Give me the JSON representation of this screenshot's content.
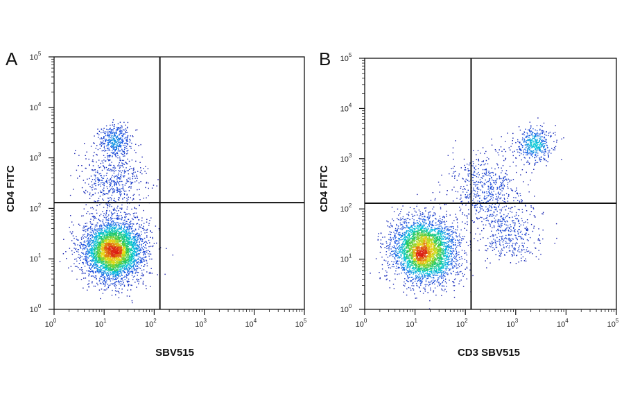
{
  "chart_data": [
    {
      "type": "scatter",
      "panel_label": "A",
      "xlabel": "SBV515",
      "ylabel": "CD4 FITC",
      "xscale": "log",
      "yscale": "log",
      "xlim": [
        1,
        100000
      ],
      "ylim": [
        1,
        100000
      ],
      "x_ticks": [
        1,
        10,
        100,
        1000,
        10000,
        100000
      ],
      "y_ticks": [
        1,
        10,
        100,
        1000,
        10000,
        100000
      ],
      "tick_base": "10",
      "tick_exponents": [
        "0",
        "1",
        "2",
        "3",
        "4",
        "5"
      ],
      "quadrant_gate": {
        "x": 130,
        "y": 130
      },
      "grid": false,
      "colormap": "density (blue-cyan-green-yellow-red)",
      "populations": [
        {
          "center_x": 15,
          "center_y": 15,
          "spread_log": 0.3,
          "share": 0.82
        },
        {
          "center_x": 16,
          "center_y": 2300,
          "spread_log": 0.16,
          "share": 0.08
        },
        {
          "center_x": 15,
          "center_y": 350,
          "spread_log": 0.3,
          "share": 0.1
        }
      ]
    },
    {
      "type": "scatter",
      "panel_label": "B",
      "xlabel": "CD3 SBV515",
      "ylabel": "CD4 FITC",
      "xscale": "log",
      "yscale": "log",
      "xlim": [
        1,
        100000
      ],
      "ylim": [
        1,
        100000
      ],
      "x_ticks": [
        1,
        10,
        100,
        1000,
        10000,
        100000
      ],
      "y_ticks": [
        1,
        10,
        100,
        1000,
        10000,
        100000
      ],
      "tick_base": "10",
      "tick_exponents": [
        "0",
        "1",
        "2",
        "3",
        "4",
        "5"
      ],
      "quadrant_gate": {
        "x": 130,
        "y": 130
      },
      "grid": false,
      "colormap": "density (blue-cyan-green-yellow-red)",
      "populations": [
        {
          "center_x": 15,
          "center_y": 15,
          "spread_log": 0.32,
          "share": 0.72
        },
        {
          "center_x": 2300,
          "center_y": 2000,
          "spread_log": 0.18,
          "share": 0.09
        },
        {
          "center_x": 800,
          "center_y": 30,
          "spread_log": 0.3,
          "share": 0.07
        },
        {
          "center_x": 250,
          "center_y": 250,
          "spread_log": 0.35,
          "share": 0.12
        }
      ]
    }
  ]
}
